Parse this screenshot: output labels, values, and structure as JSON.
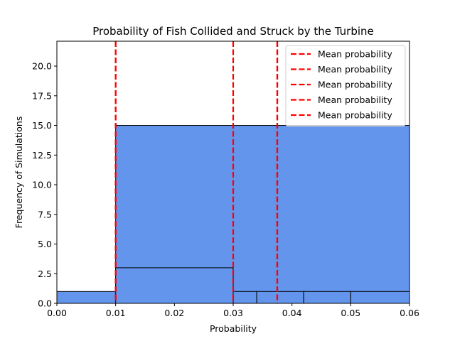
{
  "chart_data": {
    "type": "bar",
    "title": "Probability of Fish Collided and Struck by the Turbine",
    "xlabel": "Probability",
    "ylabel": "Frequency of Simulations",
    "xlim": [
      0,
      0.06
    ],
    "ylim": [
      0,
      22.1
    ],
    "xticks": [
      0,
      0.01,
      0.02,
      0.03,
      0.04,
      0.05,
      0.06
    ],
    "xtick_labels": [
      "0.00",
      "0.01",
      "0.02",
      "0.03",
      "0.04",
      "0.05",
      "0.06"
    ],
    "yticks": [
      0,
      2.5,
      5,
      7.5,
      10,
      12.5,
      15,
      17.5,
      20
    ],
    "ytick_labels": [
      "0.0",
      "2.5",
      "5.0",
      "7.5",
      "10.0",
      "12.5",
      "15.0",
      "17.5",
      "20.0"
    ],
    "grid": false,
    "legend_position": "top-right",
    "bar_color": "#6495ed",
    "edge_color": "#000000",
    "line_color": "#ff0000",
    "bars": [
      {
        "x0": 0.01,
        "x1": 0.06,
        "height": 15
      },
      {
        "x0": 0.0,
        "x1": 0.018,
        "height": 1
      },
      {
        "x0": 0.018,
        "x1": 0.026,
        "height": 1
      },
      {
        "x0": 0.026,
        "x1": 0.034,
        "height": 1
      },
      {
        "x0": 0.034,
        "x1": 0.042,
        "height": 1
      },
      {
        "x0": 0.042,
        "x1": 0.05,
        "height": 1
      },
      {
        "x0": 0.05,
        "x1": 0.06,
        "height": 1
      },
      {
        "x0": 0.01,
        "x1": 0.03,
        "height": 3
      }
    ],
    "mean_lines": [
      {
        "name": "Mean probability",
        "x": 0.01
      },
      {
        "name": "Mean probability",
        "x": 0.01
      },
      {
        "name": "Mean probability",
        "x": 0.03
      },
      {
        "name": "Mean probability",
        "x": 0.0375
      },
      {
        "name": "Mean probability",
        "x": 0.0375
      }
    ]
  }
}
